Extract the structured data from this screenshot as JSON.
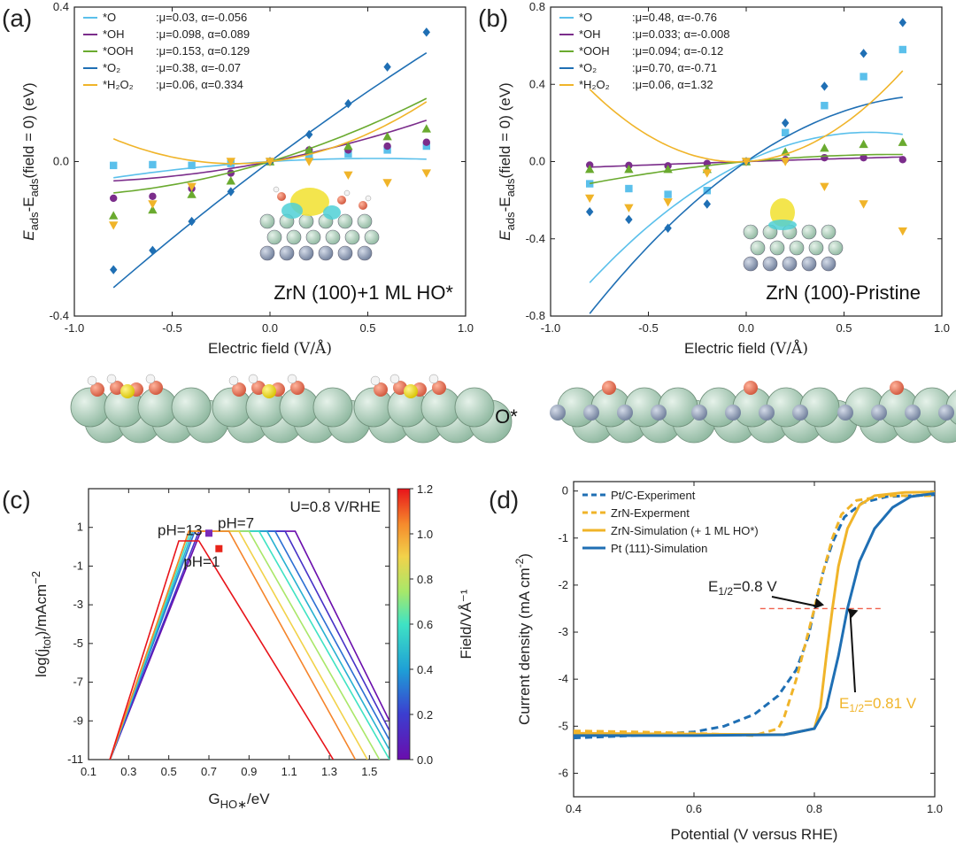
{
  "chart_data": [
    {
      "panel": "(a)",
      "type": "scatter",
      "xlabel_main": "Electric field ",
      "xlabel_unit": "(V/Å)",
      "ylabel_e1": "E",
      "ylabel_s1": "ads",
      "ylabel_mid": "-E",
      "ylabel_s2": "ads",
      "ylabel_rest": "(field = 0) (eV)",
      "xlim": [
        -1.0,
        1.0
      ],
      "ylim": [
        -0.4,
        0.4
      ],
      "xticks": [
        "-1.0",
        "-0.5",
        "0.0",
        "0.5",
        "1.0"
      ],
      "yticks": [
        "-0.4",
        "0.0",
        "0.4"
      ],
      "annotation": "ZrN (100)+1 ML HO*",
      "structure_label": "",
      "x": [
        -0.8,
        -0.6,
        -0.4,
        -0.2,
        0.0,
        0.2,
        0.4,
        0.6,
        0.8
      ],
      "series": [
        {
          "name": "*O",
          "params": ":μ=0.03, α=-0.056",
          "color": "#5bc0eb",
          "marker": "square",
          "mu": 0.03,
          "alpha": -0.056,
          "values": [
            -0.01,
            -0.008,
            -0.01,
            -0.005,
            0.0,
            0.012,
            0.02,
            0.03,
            0.04
          ]
        },
        {
          "name": "*OH",
          "params": ":μ=0.098, α=0.089",
          "color": "#7b2d8b",
          "marker": "circle",
          "mu": 0.098,
          "alpha": 0.089,
          "values": [
            -0.095,
            -0.09,
            -0.07,
            -0.03,
            0.0,
            0.03,
            0.03,
            0.04,
            0.05
          ]
        },
        {
          "name": "*OOH",
          "params": ":μ=0.153, α=0.129",
          "color": "#6aaa2f",
          "marker": "triangle",
          "mu": 0.153,
          "alpha": 0.129,
          "values": [
            -0.14,
            -0.125,
            -0.085,
            -0.05,
            0.0,
            0.03,
            0.04,
            0.065,
            0.085
          ]
        },
        {
          "name": "*O₂",
          "params": ":μ=0.38, α=-0.07",
          "color": "#1f6fb4",
          "marker": "diamond",
          "mu": 0.38,
          "alpha": -0.07,
          "values": [
            -0.28,
            -0.23,
            -0.155,
            -0.078,
            0.0,
            0.07,
            0.15,
            0.245,
            0.335
          ]
        },
        {
          "name": "*H₂O₂",
          "params": ":μ=0.06, α=0.334",
          "color": "#f0b429",
          "marker": "invtriangle",
          "mu": 0.06,
          "alpha": 0.334,
          "values": [
            -0.165,
            -0.11,
            -0.065,
            0.0,
            0.0,
            0.0,
            -0.035,
            -0.055,
            -0.03
          ]
        }
      ]
    },
    {
      "panel": "(b)",
      "type": "scatter",
      "xlabel_main": "Electric field ",
      "xlabel_unit": "(V/Å)",
      "ylabel_e1": "E",
      "ylabel_s1": "ads",
      "ylabel_mid": "-E",
      "ylabel_s2": "ads",
      "ylabel_rest": "(field = 0) (eV)",
      "xlim": [
        -1.0,
        1.0
      ],
      "ylim": [
        -0.8,
        0.8
      ],
      "xticks": [
        "-1.0",
        "-0.5",
        "0.0",
        "0.5",
        "1.0"
      ],
      "yticks": [
        "-0.8",
        "-0.4",
        "0.0",
        "0.4",
        "0.8"
      ],
      "annotation": "ZrN (100)-Pristine",
      "structure_label": "O*",
      "x": [
        -0.8,
        -0.6,
        -0.4,
        -0.2,
        0.0,
        0.2,
        0.4,
        0.6,
        0.8
      ],
      "series": [
        {
          "name": "*O",
          "params": ":μ=0.48, α=-0.76",
          "color": "#5bc0eb",
          "marker": "square",
          "mu": 0.48,
          "alpha": -0.76,
          "values": [
            -0.115,
            -0.14,
            -0.17,
            -0.15,
            0.0,
            0.15,
            0.29,
            0.44,
            0.58
          ]
        },
        {
          "name": "*OH",
          "params": ":μ=0.033; α=-0.008",
          "color": "#7b2d8b",
          "marker": "circle",
          "mu": 0.033,
          "alpha": -0.008,
          "values": [
            -0.018,
            -0.02,
            -0.022,
            -0.01,
            0.0,
            0.01,
            0.02,
            0.02,
            0.01
          ]
        },
        {
          "name": "*OOH",
          "params": ":μ=0.094; α=-0.12",
          "color": "#6aaa2f",
          "marker": "triangle",
          "mu": 0.094,
          "alpha": -0.12,
          "values": [
            -0.04,
            -0.04,
            -0.04,
            -0.04,
            0.0,
            0.05,
            0.07,
            0.09,
            0.1
          ]
        },
        {
          "name": "*O₂",
          "params": ":μ=0.70, α=-0.71",
          "color": "#1f6fb4",
          "marker": "diamond",
          "mu": 0.7,
          "alpha": -0.71,
          "values": [
            -0.26,
            -0.3,
            -0.345,
            -0.22,
            0.0,
            0.2,
            0.39,
            0.56,
            0.72
          ]
        },
        {
          "name": "*H₂O₂",
          "params": ":μ=0.06, α=1.32",
          "color": "#f0b429",
          "marker": "invtriangle",
          "mu": 0.06,
          "alpha": 1.32,
          "values": [
            -0.19,
            -0.24,
            -0.21,
            -0.06,
            0.0,
            0.0,
            -0.13,
            -0.22,
            -0.36
          ]
        }
      ]
    },
    {
      "panel": "(c)",
      "type": "line",
      "annotation": "U=0.8 V/RHE",
      "xlabel_main": "G",
      "xlabel_sub": "HO∗",
      "xlabel_unit": "/eV",
      "ylabel_main": "log(j",
      "ylabel_sub": "tot",
      "ylabel_unit": ")/mAcm",
      "ylabel_sup": "−2",
      "xlim": [
        0.1,
        1.6
      ],
      "ylim": [
        -11,
        3
      ],
      "xticks": [
        "0.1",
        "0.3",
        "0.5",
        "0.7",
        "0.9",
        "1.1",
        "1.3",
        "1.5"
      ],
      "yticks": [
        "-11",
        "-9",
        "-7",
        "-5",
        "-3",
        "-1",
        "1"
      ],
      "colorbar": {
        "label": "Field/VÅ⁻¹",
        "min": 0.0,
        "max": 1.2,
        "ticks": [
          "0.0",
          "0.2",
          "0.4",
          "0.6",
          "0.8",
          "1.0",
          "1.2"
        ]
      },
      "labels": [
        {
          "text": "pH=13",
          "color": "#7a2ab8",
          "x": 0.7,
          "y": 0.7
        },
        {
          "text": "pH=7",
          "color": "#7de8c0",
          "x": 0.7,
          "y": 0.7
        },
        {
          "text": "pH=1",
          "color": "#e8241a",
          "x": 0.75,
          "y": -0.1
        }
      ],
      "series_by_field": [
        {
          "field": 0.0,
          "peak_start": 0.66,
          "peak_end": 1.13,
          "end_x": 1.6,
          "end_y": -9.0
        },
        {
          "field": 0.15,
          "peak_start": 0.65,
          "peak_end": 1.08,
          "end_x": 1.6,
          "end_y": -9.5
        },
        {
          "field": 0.3,
          "peak_start": 0.63,
          "peak_end": 1.03,
          "end_x": 1.6,
          "end_y": -10.0
        },
        {
          "field": 0.45,
          "peak_start": 0.62,
          "peak_end": 0.99,
          "end_x": 1.6,
          "end_y": -10.5
        },
        {
          "field": 0.6,
          "peak_start": 0.61,
          "peak_end": 0.95,
          "end_x": 1.6,
          "end_y": -11.0
        },
        {
          "field": 0.75,
          "peak_start": 0.6,
          "peak_end": 0.9,
          "end_x": 1.55,
          "end_y": -11.0
        },
        {
          "field": 0.9,
          "peak_start": 0.6,
          "peak_end": 0.85,
          "end_x": 1.49,
          "end_y": -11.0
        },
        {
          "field": 1.05,
          "peak_start": 0.6,
          "peak_end": 0.8,
          "end_x": 1.43,
          "end_y": -11.0
        },
        {
          "field": 1.2,
          "peak_start": 0.55,
          "peak_end": 0.65,
          "end_x": 1.32,
          "end_y": -11.0
        }
      ]
    },
    {
      "panel": "(d)",
      "type": "line",
      "xlabel": "Potential (V versus RHE)",
      "ylabel_main": "Current density (mA cm",
      "ylabel_sup": "-2",
      "ylabel_end": ")",
      "xlim": [
        0.4,
        1.0
      ],
      "ylim": [
        -6.5,
        0.2
      ],
      "xticks": [
        "0.4",
        "0.6",
        "0.8",
        "1.0"
      ],
      "yticks": [
        "0",
        "-1",
        "-2",
        "-3",
        "-4",
        "-5",
        "-6"
      ],
      "e12_a": {
        "text_main": "E",
        "text_sub": "1/2",
        "text_val": "=0.8 V",
        "color": "#222222"
      },
      "e12_b": {
        "text_main": "E",
        "text_sub": "1/2",
        "text_val": "=0.81 V",
        "color": "#f0b429"
      },
      "reference_line": {
        "y": -2.5,
        "x": [
          0.71,
          0.91
        ],
        "color": "#f0604d"
      },
      "series": [
        {
          "name": "Pt/C-Experiment",
          "color": "#1f6fb4",
          "dash": true,
          "points": [
            [
              0.4,
              -5.25
            ],
            [
              0.5,
              -5.2
            ],
            [
              0.6,
              -5.12
            ],
            [
              0.65,
              -5.0
            ],
            [
              0.7,
              -4.75
            ],
            [
              0.74,
              -4.35
            ],
            [
              0.77,
              -3.8
            ],
            [
              0.79,
              -3.1
            ],
            [
              0.8,
              -2.5
            ],
            [
              0.815,
              -1.7
            ],
            [
              0.83,
              -1.1
            ],
            [
              0.85,
              -0.55
            ],
            [
              0.88,
              -0.25
            ],
            [
              0.92,
              -0.12
            ],
            [
              1.0,
              -0.08
            ]
          ]
        },
        {
          "name": "ZrN-Experment",
          "color": "#f0b429",
          "dash": true,
          "points": [
            [
              0.4,
              -5.1
            ],
            [
              0.5,
              -5.12
            ],
            [
              0.6,
              -5.15
            ],
            [
              0.7,
              -5.2
            ],
            [
              0.74,
              -5.05
            ],
            [
              0.75,
              -4.8
            ],
            [
              0.77,
              -4.0
            ],
            [
              0.79,
              -3.0
            ],
            [
              0.8,
              -2.5
            ],
            [
              0.815,
              -1.7
            ],
            [
              0.83,
              -1.0
            ],
            [
              0.845,
              -0.5
            ],
            [
              0.87,
              -0.2
            ],
            [
              0.92,
              -0.1
            ],
            [
              1.0,
              -0.1
            ]
          ]
        },
        {
          "name": "ZrN-Simulation (+ 1 ML HO*)",
          "color": "#f0b429",
          "dash": false,
          "points": [
            [
              0.4,
              -5.15
            ],
            [
              0.6,
              -5.17
            ],
            [
              0.75,
              -5.18
            ],
            [
              0.8,
              -5.05
            ],
            [
              0.81,
              -4.6
            ],
            [
              0.82,
              -3.5
            ],
            [
              0.83,
              -2.5
            ],
            [
              0.84,
              -1.6
            ],
            [
              0.855,
              -0.8
            ],
            [
              0.875,
              -0.3
            ],
            [
              0.9,
              -0.1
            ],
            [
              0.95,
              -0.03
            ],
            [
              1.0,
              -0.02
            ]
          ]
        },
        {
          "name": "Pt (111)-Simulation",
          "color": "#1f6fb4",
          "dash": false,
          "points": [
            [
              0.4,
              -5.2
            ],
            [
              0.6,
              -5.2
            ],
            [
              0.75,
              -5.18
            ],
            [
              0.8,
              -5.05
            ],
            [
              0.82,
              -4.6
            ],
            [
              0.84,
              -3.5
            ],
            [
              0.855,
              -2.5
            ],
            [
              0.875,
              -1.5
            ],
            [
              0.9,
              -0.8
            ],
            [
              0.93,
              -0.35
            ],
            [
              0.96,
              -0.12
            ],
            [
              1.0,
              -0.05
            ]
          ]
        }
      ]
    }
  ]
}
